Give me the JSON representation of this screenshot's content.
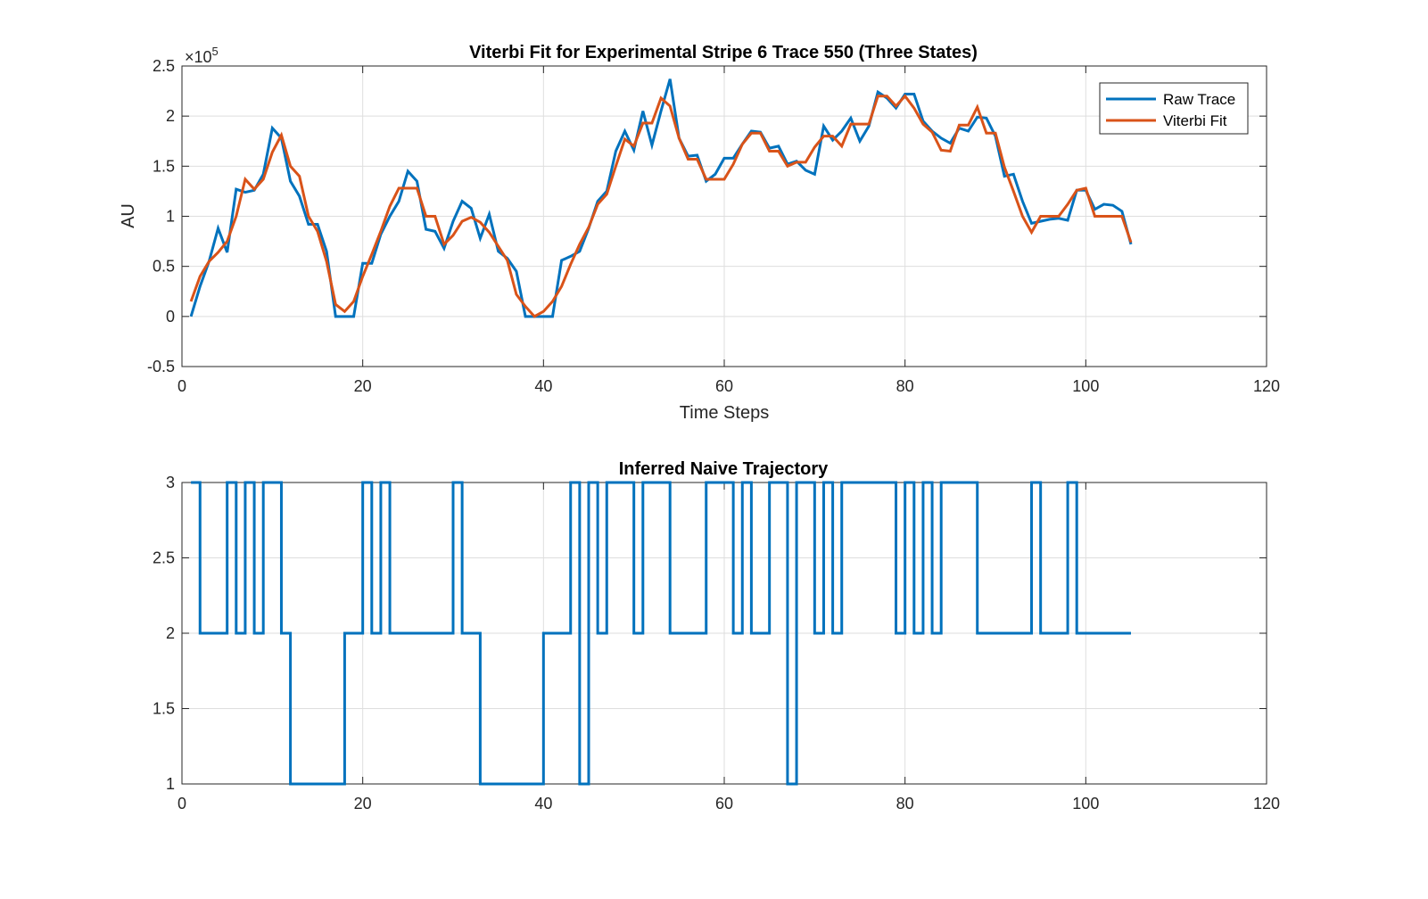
{
  "colors": {
    "raw": "#0072BD",
    "fit": "#D95319",
    "grid": "#dedede",
    "axis": "#262626"
  },
  "chart_data": [
    {
      "type": "line",
      "title": "Viterbi Fit for Experimental Stripe 6 Trace 550 (Three States)",
      "xlabel": "Time Steps",
      "ylabel": "AU",
      "y_exponent_label": "×10",
      "y_exponent_power": "5",
      "xlim": [
        0,
        120
      ],
      "ylim": [
        -0.5,
        2.5
      ],
      "y_scale_factor": 100000,
      "grid": true,
      "legend_position": "top-right",
      "xticks": [
        "0",
        "20",
        "40",
        "60",
        "80",
        "100",
        "120"
      ],
      "yticks": [
        "-0.5",
        "0",
        "0.5",
        "1",
        "1.5",
        "2",
        "2.5"
      ],
      "series": [
        {
          "name": "Raw Trace",
          "color": "#0072BD",
          "x": [
            1,
            2,
            3,
            4,
            5,
            6,
            7,
            8,
            9,
            10,
            11,
            12,
            13,
            14,
            15,
            16,
            17,
            18,
            19,
            20,
            21,
            22,
            23,
            24,
            25,
            26,
            27,
            28,
            29,
            30,
            31,
            32,
            33,
            34,
            35,
            36,
            37,
            38,
            39,
            40,
            41,
            42,
            43,
            44,
            45,
            46,
            47,
            48,
            49,
            50,
            51,
            52,
            53,
            54,
            55,
            56,
            57,
            58,
            59,
            60,
            61,
            62,
            63,
            64,
            65,
            66,
            67,
            68,
            69,
            70,
            71,
            72,
            73,
            74,
            75,
            76,
            77,
            78,
            79,
            80,
            81,
            82,
            83,
            84,
            85,
            86,
            87,
            88,
            89,
            90,
            91,
            92,
            93,
            94,
            95,
            96,
            97,
            98,
            99,
            100,
            101,
            102,
            103,
            104,
            105
          ],
          "y": [
            0.0,
            0.3,
            0.55,
            0.88,
            0.64,
            1.27,
            1.24,
            1.26,
            1.42,
            1.88,
            1.78,
            1.35,
            1.2,
            0.92,
            0.92,
            0.65,
            0.0,
            0.0,
            0.0,
            0.53,
            0.53,
            0.82,
            1.0,
            1.15,
            1.45,
            1.35,
            0.87,
            0.85,
            0.68,
            0.95,
            1.15,
            1.08,
            0.78,
            1.02,
            0.65,
            0.58,
            0.45,
            0.0,
            0.0,
            0.0,
            0.0,
            0.56,
            0.6,
            0.65,
            0.88,
            1.15,
            1.25,
            1.65,
            1.85,
            1.66,
            2.05,
            1.71,
            2.05,
            2.37,
            1.78,
            1.6,
            1.61,
            1.35,
            1.42,
            1.58,
            1.58,
            1.72,
            1.85,
            1.84,
            1.68,
            1.7,
            1.52,
            1.55,
            1.46,
            1.42,
            1.9,
            1.76,
            1.85,
            1.98,
            1.75,
            1.9,
            2.24,
            2.18,
            2.08,
            2.22,
            2.22,
            1.95,
            1.85,
            1.78,
            1.73,
            1.88,
            1.85,
            1.99,
            1.98,
            1.8,
            1.4,
            1.42,
            1.15,
            0.93,
            0.95,
            0.97,
            0.98,
            0.96,
            1.26,
            1.26,
            1.07,
            1.12,
            1.11,
            1.05,
            0.72
          ]
        },
        {
          "name": "Viterbi Fit",
          "color": "#D95319",
          "x": [
            1,
            2,
            3,
            4,
            5,
            6,
            7,
            8,
            9,
            10,
            11,
            12,
            13,
            14,
            15,
            16,
            17,
            18,
            19,
            20,
            21,
            22,
            23,
            24,
            25,
            26,
            27,
            28,
            29,
            30,
            31,
            32,
            33,
            34,
            35,
            36,
            37,
            38,
            39,
            40,
            41,
            42,
            43,
            44,
            45,
            46,
            47,
            48,
            49,
            50,
            51,
            52,
            53,
            54,
            55,
            56,
            57,
            58,
            59,
            60,
            61,
            62,
            63,
            64,
            65,
            66,
            67,
            68,
            69,
            70,
            71,
            72,
            73,
            74,
            75,
            76,
            77,
            78,
            79,
            80,
            81,
            82,
            83,
            84,
            85,
            86,
            87,
            88,
            89,
            90,
            91,
            92,
            93,
            94,
            95,
            96,
            97,
            98,
            99,
            100,
            101,
            102,
            103,
            104,
            105
          ],
          "y": [
            0.15,
            0.4,
            0.55,
            0.64,
            0.75,
            1.0,
            1.37,
            1.27,
            1.37,
            1.64,
            1.81,
            1.5,
            1.4,
            1.0,
            0.85,
            0.55,
            0.12,
            0.05,
            0.15,
            0.4,
            0.62,
            0.85,
            1.1,
            1.28,
            1.28,
            1.28,
            1.0,
            1.0,
            0.72,
            0.81,
            0.95,
            0.99,
            0.94,
            0.84,
            0.7,
            0.56,
            0.22,
            0.1,
            0.0,
            0.05,
            0.15,
            0.3,
            0.52,
            0.72,
            0.89,
            1.12,
            1.22,
            1.5,
            1.77,
            1.7,
            1.93,
            1.93,
            2.18,
            2.1,
            1.78,
            1.57,
            1.57,
            1.37,
            1.37,
            1.37,
            1.52,
            1.72,
            1.83,
            1.83,
            1.65,
            1.65,
            1.5,
            1.54,
            1.54,
            1.69,
            1.8,
            1.8,
            1.7,
            1.92,
            1.92,
            1.92,
            2.2,
            2.2,
            2.1,
            2.2,
            2.08,
            1.92,
            1.84,
            1.66,
            1.65,
            1.91,
            1.91,
            2.09,
            1.83,
            1.83,
            1.49,
            1.25,
            1.0,
            0.84,
            1.0,
            1.0,
            1.0,
            1.12,
            1.26,
            1.28,
            1.0,
            1.0,
            1.0,
            1.0,
            0.74
          ]
        }
      ]
    },
    {
      "type": "line",
      "title": "Inferred Naive Trajectory",
      "xlabel": "",
      "ylabel": "",
      "xlim": [
        0,
        120
      ],
      "ylim": [
        1,
        3
      ],
      "grid": true,
      "step": true,
      "xticks": [
        "0",
        "20",
        "40",
        "60",
        "80",
        "100",
        "120"
      ],
      "yticks": [
        "1",
        "1.5",
        "2",
        "2.5",
        "3"
      ],
      "series": [
        {
          "color": "#0072BD",
          "x": [
            1,
            2,
            3,
            4,
            5,
            6,
            7,
            8,
            9,
            10,
            11,
            12,
            13,
            14,
            15,
            16,
            17,
            18,
            19,
            20,
            21,
            22,
            23,
            24,
            25,
            26,
            27,
            28,
            29,
            30,
            31,
            32,
            33,
            34,
            35,
            36,
            37,
            38,
            39,
            40,
            41,
            42,
            43,
            44,
            45,
            46,
            47,
            48,
            49,
            50,
            51,
            52,
            53,
            54,
            55,
            56,
            57,
            58,
            59,
            60,
            61,
            62,
            63,
            64,
            65,
            66,
            67,
            68,
            69,
            70,
            71,
            72,
            73,
            74,
            75,
            76,
            77,
            78,
            79,
            80,
            81,
            82,
            83,
            84,
            85,
            86,
            87,
            88,
            89,
            90,
            91,
            92,
            93,
            94,
            95,
            96,
            97,
            98,
            99,
            100,
            101,
            102,
            103,
            104,
            105
          ],
          "y": [
            3,
            2,
            2,
            2,
            3,
            2,
            3,
            2,
            3,
            3,
            2,
            1,
            1,
            1,
            1,
            1,
            1,
            2,
            2,
            3,
            2,
            3,
            2,
            2,
            2,
            2,
            2,
            2,
            2,
            3,
            2,
            2,
            1,
            1,
            1,
            1,
            1,
            1,
            1,
            2,
            2,
            2,
            3,
            1,
            3,
            2,
            3,
            3,
            3,
            2,
            3,
            3,
            3,
            2,
            2,
            2,
            2,
            3,
            3,
            3,
            2,
            3,
            2,
            2,
            3,
            3,
            1,
            3,
            3,
            2,
            3,
            2,
            3,
            3,
            3,
            3,
            3,
            3,
            2,
            3,
            2,
            3,
            2,
            3,
            3,
            3,
            3,
            2,
            2,
            2,
            2,
            2,
            2,
            3,
            2,
            2,
            2,
            3,
            2,
            2,
            2,
            2,
            2,
            2,
            2
          ]
        }
      ]
    }
  ]
}
